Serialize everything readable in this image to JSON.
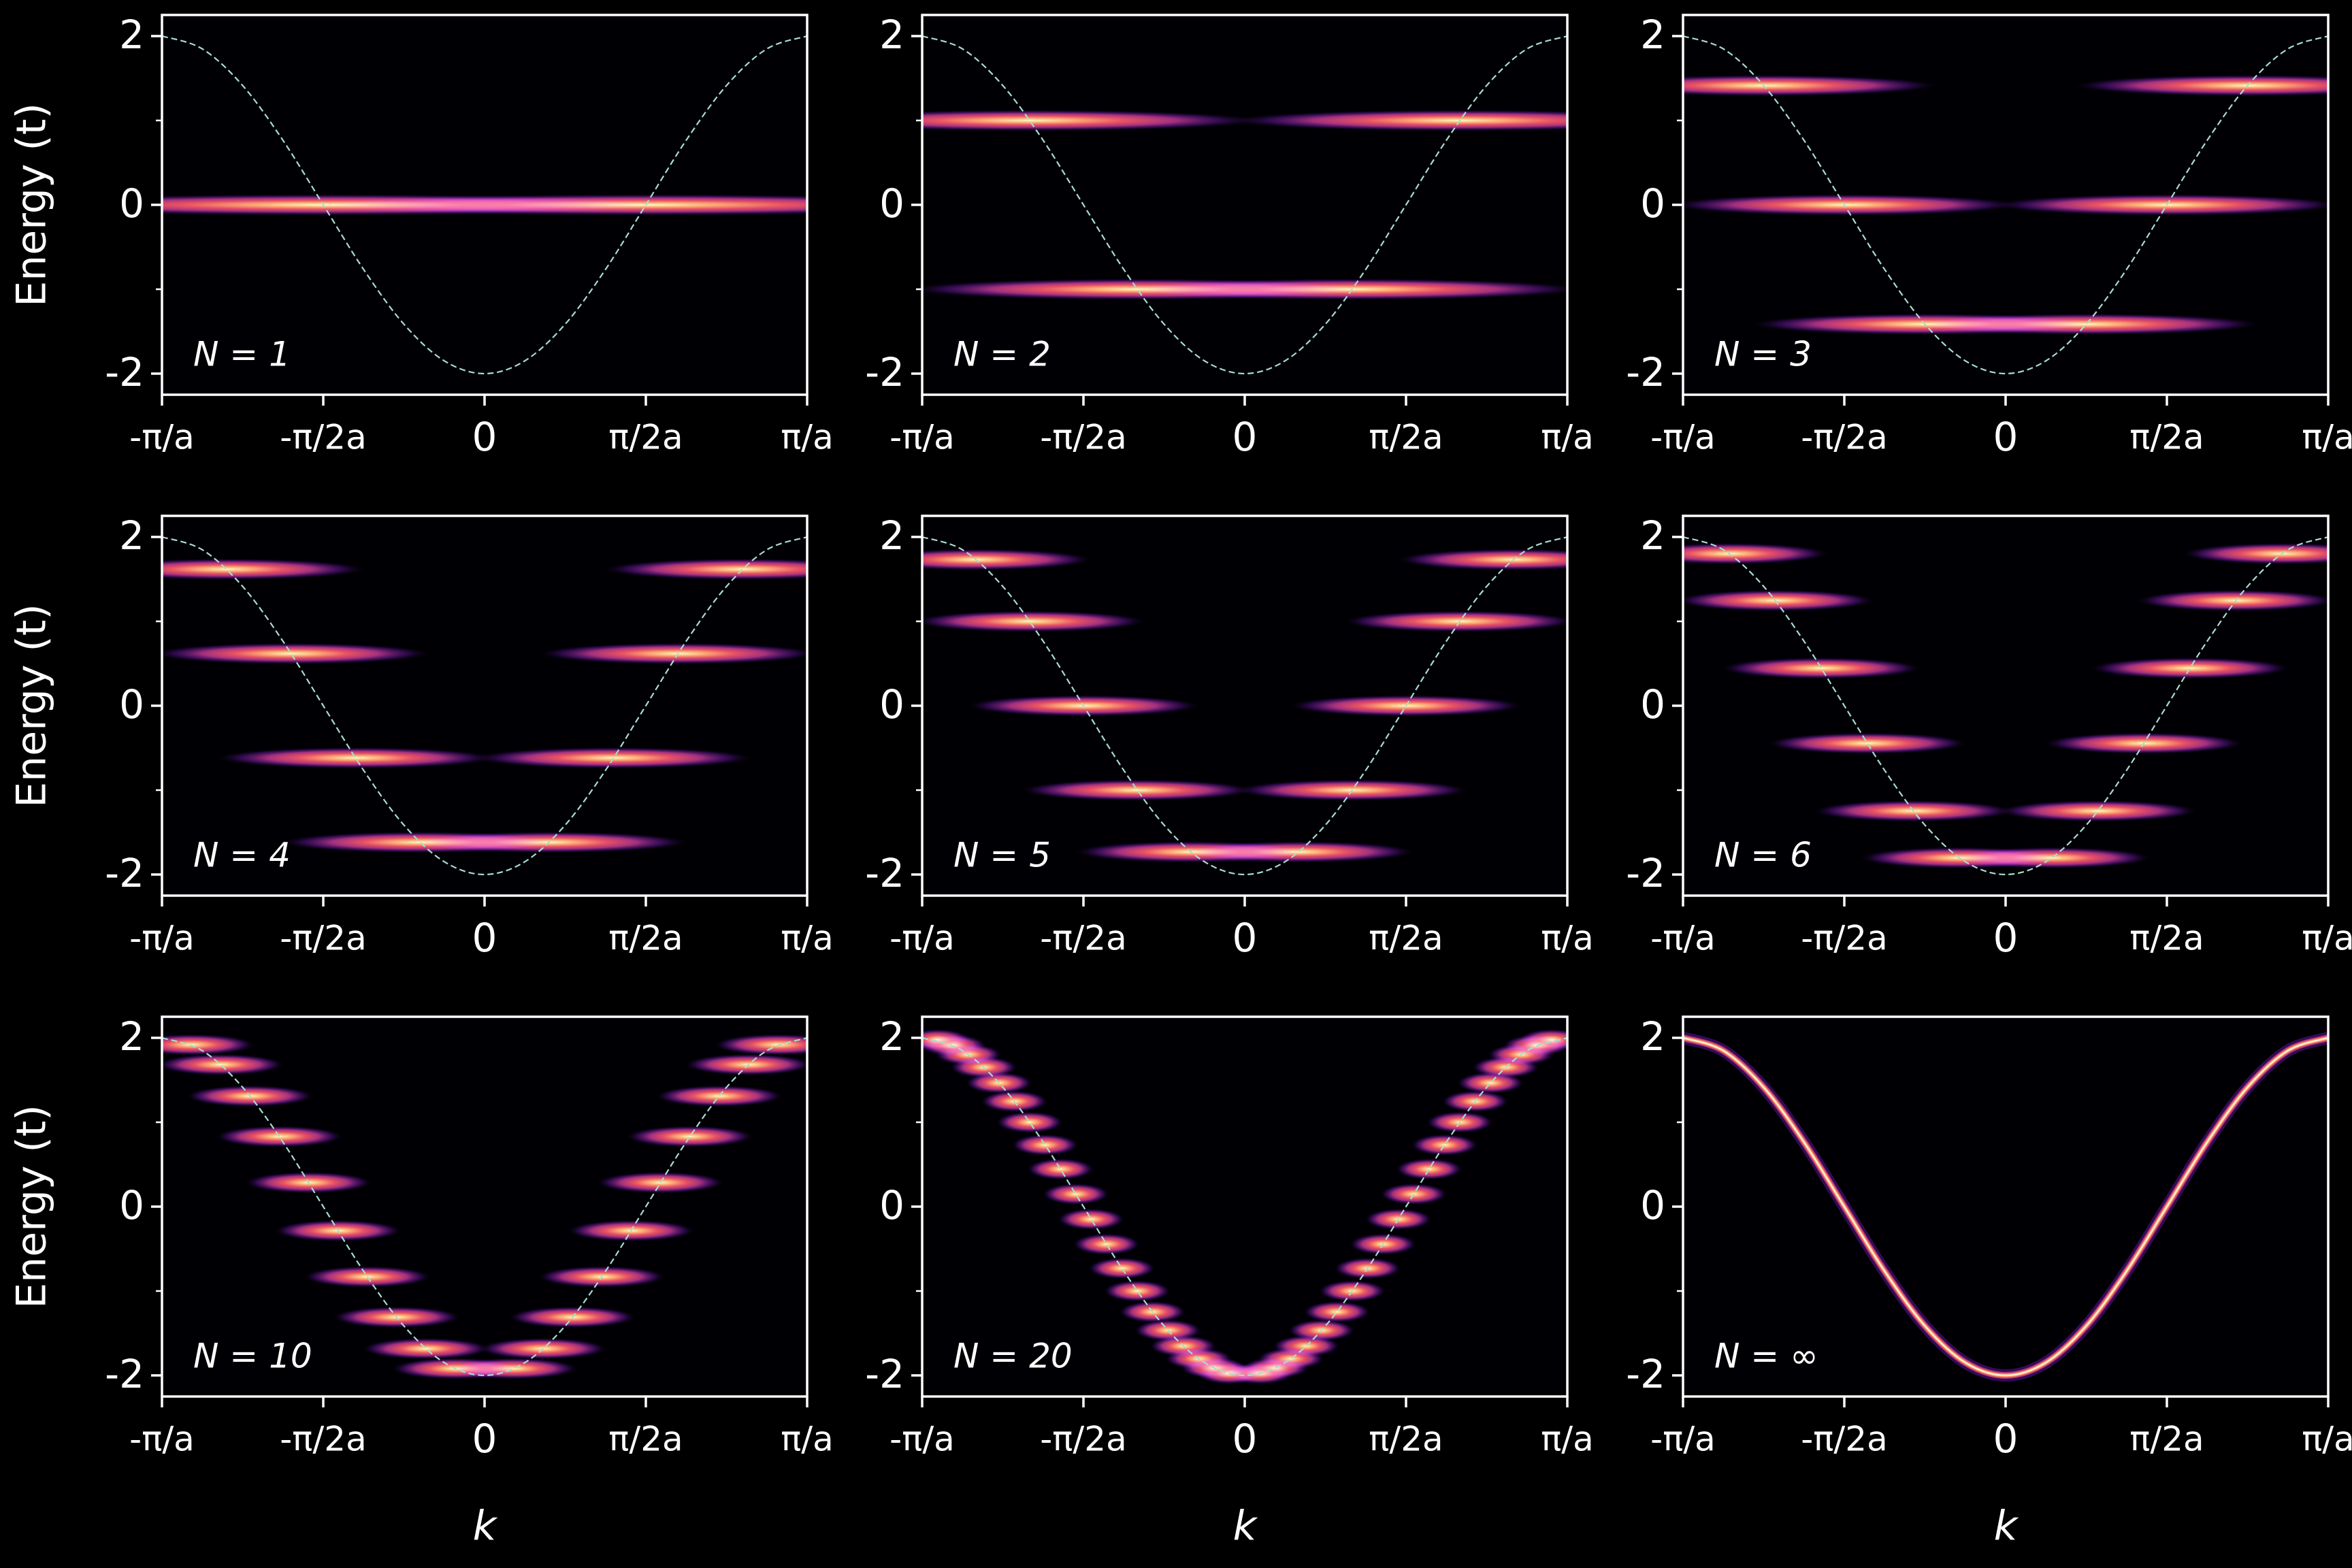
{
  "chart_data": [
    {
      "type": "heatmap",
      "label": "N = 1",
      "ylabel": "Energy (t)",
      "N": 1,
      "levels": [
        0
      ],
      "x": [
        -1,
        -0.875,
        -0.75,
        -0.625,
        -0.5,
        -0.375,
        -0.25,
        -0.125,
        0,
        0.125,
        0.25,
        0.375,
        0.5,
        0.625,
        0.75,
        0.875,
        1
      ],
      "values": [
        2,
        1.848,
        1.414,
        0.765,
        0,
        -0.765,
        -1.414,
        -1.848,
        -2,
        -1.848,
        -1.414,
        -0.765,
        0,
        0.765,
        1.414,
        1.848,
        2
      ],
      "xlim": [
        -1,
        1
      ],
      "ylim": [
        -2.25,
        2.25
      ],
      "xticks": [
        {
          "value": -1,
          "label": "-π/a"
        },
        {
          "value": -0.5,
          "label": "-π/2a"
        },
        0,
        {
          "value": 0.5,
          "label": "π/2a"
        },
        {
          "value": 1,
          "label": "π/a"
        }
      ],
      "yticks": [
        -2,
        0,
        2
      ],
      "yminorticks": [
        -1,
        1
      ],
      "colormap": "magma",
      "line_color": "#a8dcd1"
    },
    {
      "type": "heatmap",
      "label": "N = 2",
      "N": 2,
      "levels": [
        1,
        -1
      ],
      "x": [
        -1,
        -0.875,
        -0.75,
        -0.625,
        -0.5,
        -0.375,
        -0.25,
        -0.125,
        0,
        0.125,
        0.25,
        0.375,
        0.5,
        0.625,
        0.75,
        0.875,
        1
      ],
      "values": [
        2,
        1.848,
        1.414,
        0.765,
        0,
        -0.765,
        -1.414,
        -1.848,
        -2,
        -1.848,
        -1.414,
        -0.765,
        0,
        0.765,
        1.414,
        1.848,
        2
      ],
      "xlim": [
        -1,
        1
      ],
      "ylim": [
        -2.25,
        2.25
      ],
      "xticks": [
        {
          "value": -1,
          "label": "-π/a"
        },
        {
          "value": -0.5,
          "label": "-π/2a"
        },
        0,
        {
          "value": 0.5,
          "label": "π/2a"
        },
        {
          "value": 1,
          "label": "π/a"
        }
      ],
      "yticks": [
        -2,
        0,
        2
      ],
      "yminorticks": [
        -1,
        1
      ],
      "colormap": "magma",
      "line_color": "#a8dcd1"
    },
    {
      "type": "heatmap",
      "label": "N = 3",
      "N": 3,
      "levels": [
        1.414,
        0,
        -1.414
      ],
      "x": [
        -1,
        -0.875,
        -0.75,
        -0.625,
        -0.5,
        -0.375,
        -0.25,
        -0.125,
        0,
        0.125,
        0.25,
        0.375,
        0.5,
        0.625,
        0.75,
        0.875,
        1
      ],
      "values": [
        2,
        1.848,
        1.414,
        0.765,
        0,
        -0.765,
        -1.414,
        -1.848,
        -2,
        -1.848,
        -1.414,
        -0.765,
        0,
        0.765,
        1.414,
        1.848,
        2
      ],
      "xlim": [
        -1,
        1
      ],
      "ylim": [
        -2.25,
        2.25
      ],
      "xticks": [
        {
          "value": -1,
          "label": "-π/a"
        },
        {
          "value": -0.5,
          "label": "-π/2a"
        },
        0,
        {
          "value": 0.5,
          "label": "π/2a"
        },
        {
          "value": 1,
          "label": "π/a"
        }
      ],
      "yticks": [
        -2,
        0,
        2
      ],
      "yminorticks": [
        -1,
        1
      ],
      "colormap": "magma",
      "line_color": "#a8dcd1"
    },
    {
      "type": "heatmap",
      "label": "N = 4",
      "ylabel": "Energy (t)",
      "N": 4,
      "levels": [
        1.618,
        0.618,
        -0.618,
        -1.618
      ],
      "x": [
        -1,
        -0.875,
        -0.75,
        -0.625,
        -0.5,
        -0.375,
        -0.25,
        -0.125,
        0,
        0.125,
        0.25,
        0.375,
        0.5,
        0.625,
        0.75,
        0.875,
        1
      ],
      "values": [
        2,
        1.848,
        1.414,
        0.765,
        0,
        -0.765,
        -1.414,
        -1.848,
        -2,
        -1.848,
        -1.414,
        -0.765,
        0,
        0.765,
        1.414,
        1.848,
        2
      ],
      "xlim": [
        -1,
        1
      ],
      "ylim": [
        -2.25,
        2.25
      ],
      "xticks": [
        {
          "value": -1,
          "label": "-π/a"
        },
        {
          "value": -0.5,
          "label": "-π/2a"
        },
        0,
        {
          "value": 0.5,
          "label": "π/2a"
        },
        {
          "value": 1,
          "label": "π/a"
        }
      ],
      "yticks": [
        -2,
        0,
        2
      ],
      "yminorticks": [
        -1,
        1
      ],
      "colormap": "magma",
      "line_color": "#a8dcd1"
    },
    {
      "type": "heatmap",
      "label": "N = 5",
      "N": 5,
      "levels": [
        1.732,
        1,
        0,
        -1,
        -1.732
      ],
      "x": [
        -1,
        -0.875,
        -0.75,
        -0.625,
        -0.5,
        -0.375,
        -0.25,
        -0.125,
        0,
        0.125,
        0.25,
        0.375,
        0.5,
        0.625,
        0.75,
        0.875,
        1
      ],
      "values": [
        2,
        1.848,
        1.414,
        0.765,
        0,
        -0.765,
        -1.414,
        -1.848,
        -2,
        -1.848,
        -1.414,
        -0.765,
        0,
        0.765,
        1.414,
        1.848,
        2
      ],
      "xlim": [
        -1,
        1
      ],
      "ylim": [
        -2.25,
        2.25
      ],
      "xticks": [
        {
          "value": -1,
          "label": "-π/a"
        },
        {
          "value": -0.5,
          "label": "-π/2a"
        },
        0,
        {
          "value": 0.5,
          "label": "π/2a"
        },
        {
          "value": 1,
          "label": "π/a"
        }
      ],
      "yticks": [
        -2,
        0,
        2
      ],
      "yminorticks": [
        -1,
        1
      ],
      "colormap": "magma",
      "line_color": "#a8dcd1"
    },
    {
      "type": "heatmap",
      "label": "N = 6",
      "N": 6,
      "levels": [
        1.802,
        1.247,
        0.445,
        -0.445,
        -1.247,
        -1.802
      ],
      "x": [
        -1,
        -0.875,
        -0.75,
        -0.625,
        -0.5,
        -0.375,
        -0.25,
        -0.125,
        0,
        0.125,
        0.25,
        0.375,
        0.5,
        0.625,
        0.75,
        0.875,
        1
      ],
      "values": [
        2,
        1.848,
        1.414,
        0.765,
        0,
        -0.765,
        -1.414,
        -1.848,
        -2,
        -1.848,
        -1.414,
        -0.765,
        0,
        0.765,
        1.414,
        1.848,
        2
      ],
      "xlim": [
        -1,
        1
      ],
      "ylim": [
        -2.25,
        2.25
      ],
      "xticks": [
        {
          "value": -1,
          "label": "-π/a"
        },
        {
          "value": -0.5,
          "label": "-π/2a"
        },
        0,
        {
          "value": 0.5,
          "label": "π/2a"
        },
        {
          "value": 1,
          "label": "π/a"
        }
      ],
      "yticks": [
        -2,
        0,
        2
      ],
      "yminorticks": [
        -1,
        1
      ],
      "colormap": "magma",
      "line_color": "#a8dcd1"
    },
    {
      "type": "heatmap",
      "label": "N = 10",
      "ylabel": "Energy (t)",
      "xlabel": "k",
      "N": 10,
      "levels": [
        1.919,
        1.683,
        1.31,
        0.831,
        0.285,
        -0.285,
        -0.831,
        -1.31,
        -1.683,
        -1.919
      ],
      "x": [
        -1,
        -0.875,
        -0.75,
        -0.625,
        -0.5,
        -0.375,
        -0.25,
        -0.125,
        0,
        0.125,
        0.25,
        0.375,
        0.5,
        0.625,
        0.75,
        0.875,
        1
      ],
      "values": [
        2,
        1.848,
        1.414,
        0.765,
        0,
        -0.765,
        -1.414,
        -1.848,
        -2,
        -1.848,
        -1.414,
        -0.765,
        0,
        0.765,
        1.414,
        1.848,
        2
      ],
      "xlim": [
        -1,
        1
      ],
      "ylim": [
        -2.25,
        2.25
      ],
      "xticks": [
        {
          "value": -1,
          "label": "-π/a"
        },
        {
          "value": -0.5,
          "label": "-π/2a"
        },
        0,
        {
          "value": 0.5,
          "label": "π/2a"
        },
        {
          "value": 1,
          "label": "π/a"
        }
      ],
      "yticks": [
        -2,
        0,
        2
      ],
      "yminorticks": [
        -1,
        1
      ],
      "colormap": "magma",
      "line_color": "#a8dcd1"
    },
    {
      "type": "heatmap",
      "label": "N = 20",
      "xlabel": "k",
      "N": 20,
      "levels": [
        1.978,
        1.911,
        1.802,
        1.652,
        1.466,
        1.247,
        1,
        0.731,
        0.445,
        0.149,
        -0.149,
        -0.445,
        -0.731,
        -1,
        -1.247,
        -1.466,
        -1.652,
        -1.802,
        -1.911,
        -1.978
      ],
      "x": [
        -1,
        -0.875,
        -0.75,
        -0.625,
        -0.5,
        -0.375,
        -0.25,
        -0.125,
        0,
        0.125,
        0.25,
        0.375,
        0.5,
        0.625,
        0.75,
        0.875,
        1
      ],
      "values": [
        2,
        1.848,
        1.414,
        0.765,
        0,
        -0.765,
        -1.414,
        -1.848,
        -2,
        -1.848,
        -1.414,
        -0.765,
        0,
        0.765,
        1.414,
        1.848,
        2
      ],
      "xlim": [
        -1,
        1
      ],
      "ylim": [
        -2.25,
        2.25
      ],
      "xticks": [
        {
          "value": -1,
          "label": "-π/a"
        },
        {
          "value": -0.5,
          "label": "-π/2a"
        },
        0,
        {
          "value": 0.5,
          "label": "π/2a"
        },
        {
          "value": 1,
          "label": "π/a"
        }
      ],
      "yticks": [
        -2,
        0,
        2
      ],
      "yminorticks": [
        -1,
        1
      ],
      "colormap": "magma",
      "line_color": "#a8dcd1"
    },
    {
      "type": "line",
      "label": "N = ∞",
      "xlabel": "k",
      "x": [
        -1,
        -0.875,
        -0.75,
        -0.625,
        -0.5,
        -0.375,
        -0.25,
        -0.125,
        0,
        0.125,
        0.25,
        0.375,
        0.5,
        0.625,
        0.75,
        0.875,
        1
      ],
      "values": [
        2,
        1.848,
        1.414,
        0.765,
        0,
        -0.765,
        -1.414,
        -1.848,
        -2,
        -1.848,
        -1.414,
        -0.765,
        0,
        0.765,
        1.414,
        1.848,
        2
      ],
      "xlim": [
        -1,
        1
      ],
      "ylim": [
        -2.25,
        2.25
      ],
      "xticks": [
        {
          "value": -1,
          "label": "-π/a"
        },
        {
          "value": -0.5,
          "label": "-π/2a"
        },
        0,
        {
          "value": 0.5,
          "label": "π/2a"
        },
        {
          "value": 1,
          "label": "π/a"
        }
      ],
      "yticks": [
        -2,
        0,
        2
      ],
      "yminorticks": [
        -1,
        1
      ],
      "colormap": "magma",
      "line_color": "#a8dcd1"
    }
  ]
}
